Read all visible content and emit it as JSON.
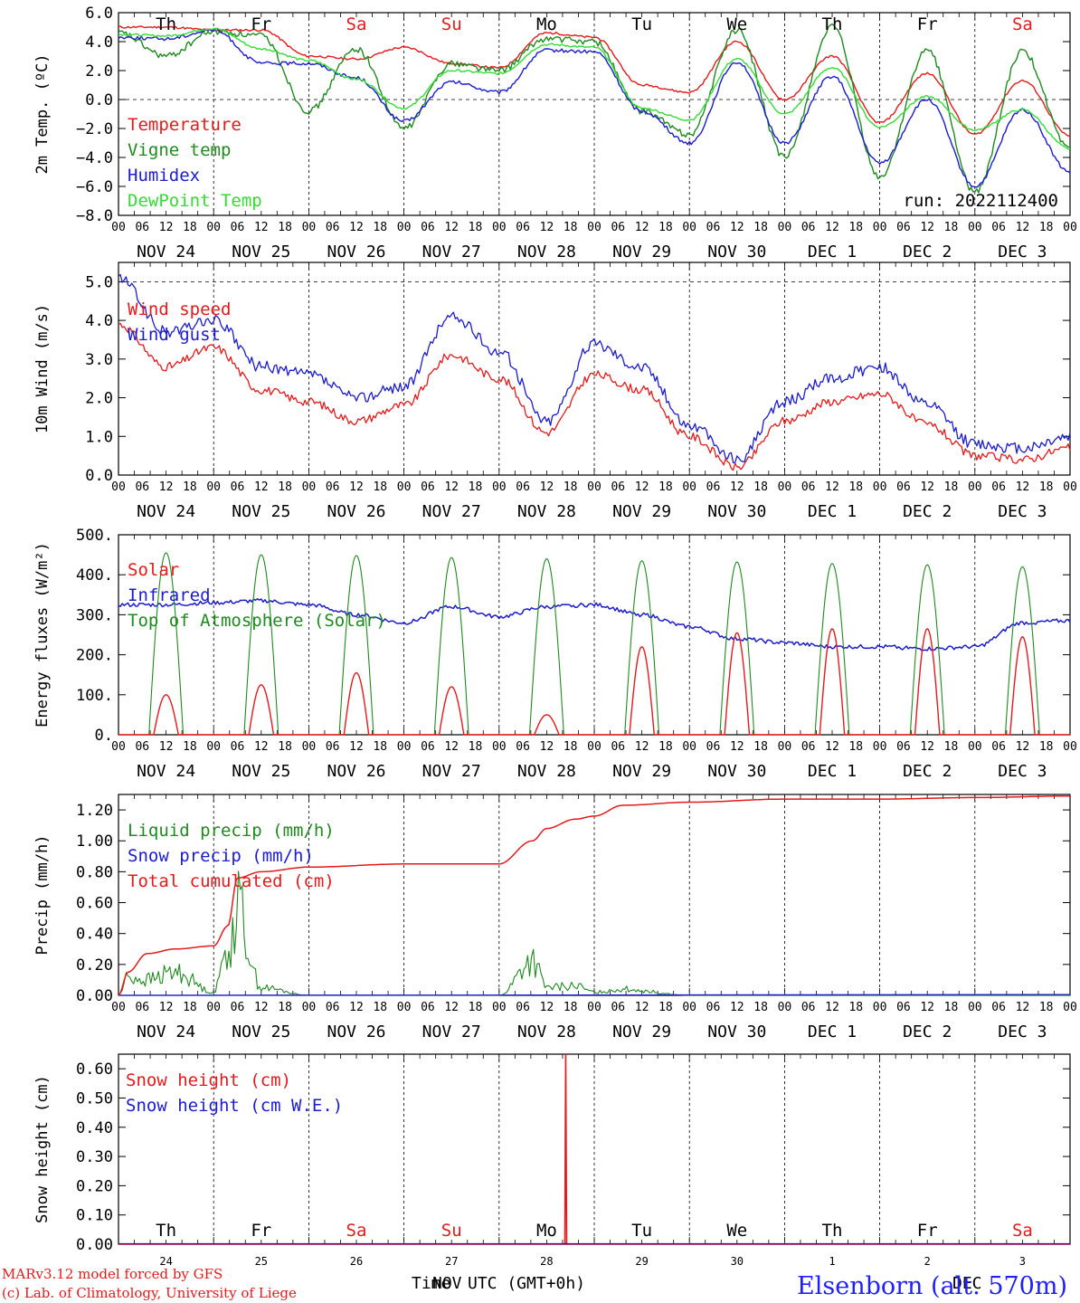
{
  "colors": {
    "red": "#e41a1c",
    "green": "#1f8a1f",
    "blue": "#1c1ccf",
    "lightgreen": "#33dd33",
    "weekend": "#e41a1c",
    "black": "#000000"
  },
  "day_names": [
    "Th",
    "Fr",
    "Sa",
    "Su",
    "Mo",
    "Tu",
    "We",
    "Th",
    "Fr",
    "Sa"
  ],
  "weekend_flags": [
    false,
    false,
    true,
    true,
    false,
    false,
    false,
    false,
    false,
    true
  ],
  "date_labels": [
    "NOV 24",
    "NOV 25",
    "NOV 26",
    "NOV 27",
    "NOV 28",
    "NOV 29",
    "NOV 30",
    "DEC  1",
    "DEC  2",
    "DEC  3"
  ],
  "day_numbers": [
    "24",
    "25",
    "26",
    "27",
    "28",
    "29",
    "30",
    "1",
    "2",
    "3"
  ],
  "hour_ticks": [
    "00",
    "06",
    "12",
    "18"
  ],
  "footer": {
    "model": "MARv3.12 model forced by GFS",
    "copyright": "(c) Lab. of Climatology, University of Liege",
    "xlabel_a": "Time",
    "xlabel_b": "NOV",
    "xlabel_c": " UTC (GMT+0h)",
    "xlabel_d": "DEC",
    "station": "Elsenborn (alt. 570m)"
  },
  "chart_data": [
    {
      "type": "line",
      "ylabel": "2m Temp. (ºC)",
      "ylim": [
        -8,
        6
      ],
      "yticks": [
        "6.0",
        "4.0",
        "2.0",
        "0.0",
        "−2.0",
        "−4.0",
        "−6.0",
        "−8.0"
      ],
      "ref_line": 0,
      "run_label": "run: 2022112400",
      "x_days": [
        0,
        0.5,
        1,
        1.5,
        2,
        2.5,
        3,
        3.5,
        4,
        4.5,
        5,
        5.5,
        6,
        6.5,
        7,
        7.5,
        8,
        8.5,
        9,
        9.5,
        10
      ],
      "series": [
        {
          "name": "Temperature",
          "color": "red",
          "values": [
            5.0,
            5.0,
            4.8,
            4.8,
            3.0,
            2.8,
            3.6,
            2.5,
            2.2,
            4.6,
            4.3,
            1.0,
            0.5,
            4.0,
            0.0,
            3.0,
            -1.6,
            1.8,
            -2.4,
            1.3,
            -2.5
          ]
        },
        {
          "name": "Vigne temp",
          "color": "green",
          "values": [
            4.6,
            3.0,
            4.7,
            4.4,
            -0.8,
            3.5,
            -2.0,
            2.5,
            2.0,
            4.2,
            4.0,
            -0.8,
            -2.4,
            4.8,
            -4.0,
            5.0,
            -5.4,
            3.4,
            -6.4,
            3.3,
            -3.5
          ]
        },
        {
          "name": "Humidex",
          "color": "blue",
          "values": [
            4.3,
            4.2,
            4.8,
            2.5,
            2.5,
            1.5,
            -1.5,
            1.2,
            0.5,
            3.4,
            3.3,
            -0.8,
            -3.0,
            2.6,
            -3.0,
            1.6,
            -4.4,
            0.0,
            -6.0,
            -0.7,
            -5.0
          ]
        },
        {
          "name": "DewPoint Temp",
          "color": "lightgreen",
          "values": [
            4.5,
            4.4,
            4.9,
            3.5,
            2.7,
            1.4,
            -0.6,
            2.0,
            1.8,
            3.8,
            3.6,
            -0.6,
            -1.4,
            2.8,
            -1.0,
            2.2,
            -1.9,
            0.2,
            -2.1,
            -0.7,
            -3.4
          ]
        }
      ]
    },
    {
      "type": "line",
      "ylabel": "10m Wind (m/s)",
      "ylim": [
        0,
        5.5
      ],
      "yticks": [
        "5.0",
        "4.0",
        "3.0",
        "2.0",
        "1.0",
        "0.0"
      ],
      "ref_line": 5,
      "x_days": [
        0,
        0.5,
        1,
        1.5,
        2,
        2.5,
        3,
        3.5,
        4,
        4.5,
        5,
        5.5,
        6,
        6.5,
        7,
        7.5,
        8,
        8.5,
        9,
        9.5,
        10
      ],
      "series": [
        {
          "name": "Wind speed",
          "color": "red",
          "values": [
            3.9,
            2.8,
            3.3,
            2.2,
            1.9,
            1.4,
            1.8,
            3.1,
            2.5,
            1.1,
            2.6,
            2.2,
            1.0,
            0.2,
            1.4,
            1.9,
            2.1,
            1.3,
            0.5,
            0.4,
            0.7
          ]
        },
        {
          "name": "Wind gust",
          "color": "blue",
          "values": [
            5.1,
            3.7,
            4.0,
            2.8,
            2.6,
            2.0,
            2.3,
            4.1,
            3.2,
            1.4,
            3.4,
            2.8,
            1.3,
            0.4,
            1.9,
            2.5,
            2.8,
            1.8,
            0.8,
            0.7,
            1.0
          ]
        }
      ]
    },
    {
      "type": "line",
      "ylabel": "Energy fluxes (W/m²)",
      "ylim": [
        0,
        500
      ],
      "yticks": [
        "500.",
        "400.",
        "300.",
        "200.",
        "100.",
        "0."
      ],
      "ref_line": null,
      "series": [
        {
          "name": "Solar",
          "color": "red",
          "daily_peaks": [
            100,
            125,
            155,
            120,
            50,
            220,
            255,
            265,
            265,
            245
          ]
        },
        {
          "name": "Infrared",
          "color": "blue",
          "x_days": [
            0,
            0.5,
            1,
            1.5,
            2,
            2.5,
            3,
            3.5,
            4,
            4.5,
            5,
            5.5,
            6,
            6.5,
            7,
            7.5,
            8,
            8.5,
            9,
            9.5,
            10
          ],
          "values": [
            325,
            325,
            330,
            335,
            325,
            300,
            280,
            320,
            295,
            320,
            325,
            300,
            270,
            240,
            230,
            220,
            220,
            215,
            220,
            280,
            285
          ]
        },
        {
          "name": "Top of Atmosphere (Solar)",
          "color": "green",
          "daily_peaks": [
            455,
            450,
            448,
            443,
            440,
            435,
            432,
            428,
            425,
            420
          ]
        }
      ]
    },
    {
      "type": "line",
      "ylabel": "Precip (mm/h)",
      "ylim": [
        0,
        1.3
      ],
      "yticks": [
        "1.20",
        "1.00",
        "0.80",
        "0.60",
        "0.40",
        "0.20",
        "0.00"
      ],
      "ref_line": null,
      "x_days": [
        0,
        0.1,
        0.3,
        0.6,
        1.0,
        1.15,
        1.25,
        1.5,
        2.0,
        3.0,
        4.0,
        4.35,
        4.5,
        4.8,
        5.0,
        5.3,
        6.0,
        7.0,
        8.0,
        9.0,
        10.0
      ],
      "series": [
        {
          "name": "Liquid precip (mm/h)",
          "color": "green",
          "values": [
            0.0,
            0.12,
            0.1,
            0.15,
            0.02,
            0.3,
            0.55,
            0.05,
            0.0,
            0.0,
            0.0,
            0.22,
            0.05,
            0.06,
            0.02,
            0.04,
            0.0,
            0.0,
            0.0,
            0.0,
            0.0
          ]
        },
        {
          "name": "Snow precip (mm/h)",
          "color": "blue",
          "values": [
            0,
            0,
            0,
            0,
            0,
            0,
            0,
            0,
            0,
            0,
            0,
            0,
            0,
            0,
            0,
            0,
            0,
            0,
            0,
            0,
            0
          ]
        },
        {
          "name": "Total cumulated (cm)",
          "color": "red",
          "values": [
            0.0,
            0.15,
            0.27,
            0.3,
            0.32,
            0.45,
            0.76,
            0.8,
            0.83,
            0.85,
            0.85,
            1.0,
            1.08,
            1.14,
            1.16,
            1.23,
            1.25,
            1.27,
            1.27,
            1.28,
            1.29
          ]
        }
      ]
    },
    {
      "type": "line",
      "ylabel": "Snow height (cm)",
      "ylim": [
        0,
        0.65
      ],
      "yticks": [
        "0.60",
        "0.50",
        "0.40",
        "0.30",
        "0.20",
        "0.10",
        "0.00"
      ],
      "ref_line": null,
      "series": [
        {
          "name": "Snow height (cm)",
          "color": "red",
          "spike_day": 4.7,
          "spike_value": 0.65
        },
        {
          "name": "Snow height (cm W.E.)",
          "color": "blue",
          "values": [
            0
          ]
        }
      ]
    }
  ]
}
